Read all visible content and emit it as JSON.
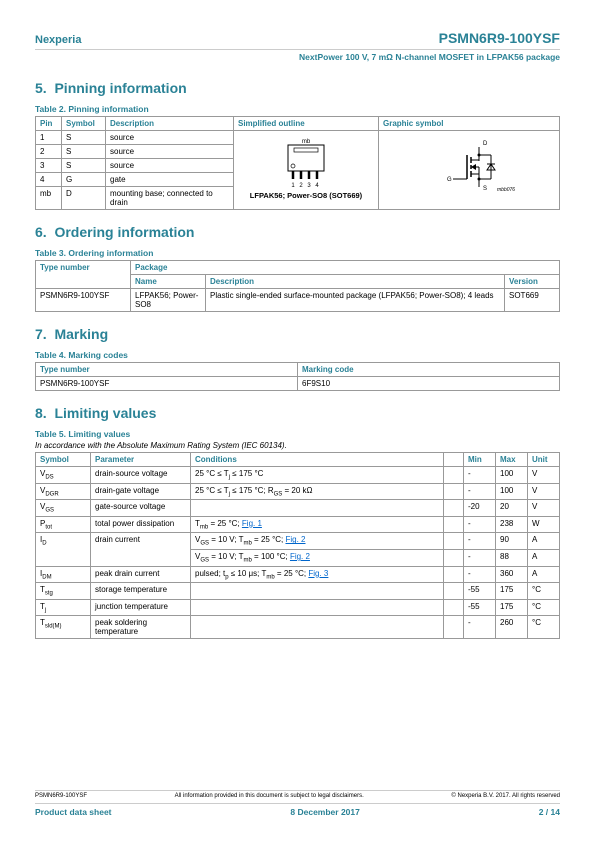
{
  "header": {
    "company": "Nexperia",
    "part": "PSMN6R9-100YSF",
    "subtitle": "NextPower 100 V, 7 mΩ N-channel MOSFET in LFPAK56 package"
  },
  "sections": {
    "s5": {
      "num": "5.",
      "title": "Pinning information"
    },
    "s6": {
      "num": "6.",
      "title": "Ordering information"
    },
    "s7": {
      "num": "7.",
      "title": "Marking"
    },
    "s8": {
      "num": "8.",
      "title": "Limiting values"
    }
  },
  "table2": {
    "title": "Table 2. Pinning information",
    "headers": {
      "pin": "Pin",
      "symbol": "Symbol",
      "desc": "Description",
      "outline": "Simplified outline",
      "graphic": "Graphic symbol"
    },
    "rows": [
      {
        "pin": "1",
        "symbol": "S",
        "desc": "source"
      },
      {
        "pin": "2",
        "symbol": "S",
        "desc": "source"
      },
      {
        "pin": "3",
        "symbol": "S",
        "desc": "source"
      },
      {
        "pin": "4",
        "symbol": "G",
        "desc": "gate"
      },
      {
        "pin": "mb",
        "symbol": "D",
        "desc": "mounting base; connected to drain"
      }
    ],
    "pkg_label": "LFPAK56; Power-SO8 (SOT669)",
    "mb_label": "mb",
    "pin_nums": {
      "p1": "1",
      "p2": "2",
      "p3": "3",
      "p4": "4"
    },
    "sym_labels": {
      "d": "D",
      "g": "G",
      "s": "S",
      "ref": "mbb076"
    }
  },
  "table3": {
    "title": "Table 3. Ordering information",
    "headers": {
      "type": "Type number",
      "pkg": "Package",
      "name": "Name",
      "desc": "Description",
      "ver": "Version"
    },
    "row": {
      "type": "PSMN6R9-100YSF",
      "name": "LFPAK56; Power-SO8",
      "desc": "Plastic single-ended surface-mounted package (LFPAK56; Power-SO8); 4 leads",
      "ver": "SOT669"
    }
  },
  "table4": {
    "title": "Table 4. Marking codes",
    "headers": {
      "type": "Type number",
      "code": "Marking code"
    },
    "row": {
      "type": "PSMN6R9-100YSF",
      "code": "6F9S10"
    }
  },
  "table5": {
    "title": "Table 5. Limiting values",
    "note": "In accordance with the Absolute Maximum Rating System (IEC 60134).",
    "headers": {
      "symbol": "Symbol",
      "param": "Parameter",
      "cond": "Conditions",
      "blank": "",
      "min": "Min",
      "max": "Max",
      "unit": "Unit"
    },
    "rows": [
      {
        "sym_html": "V<sub>DS</sub>",
        "param": "drain-source voltage",
        "cond_html": "25 °C ≤  T<sub>j</sub> ≤  175 °C",
        "min": "-",
        "max": "100",
        "unit": "V"
      },
      {
        "sym_html": "V<sub>DGR</sub>",
        "param": "drain-gate voltage",
        "cond_html": "25 °C ≤  T<sub>j</sub> ≤  175 °C; R<sub>GS</sub> = 20 kΩ",
        "min": "-",
        "max": "100",
        "unit": "V"
      },
      {
        "sym_html": "V<sub>GS</sub>",
        "param": "gate-source voltage",
        "cond_html": "",
        "min": "-20",
        "max": "20",
        "unit": "V"
      },
      {
        "sym_html": "P<sub>tot</sub>",
        "param": "total power dissipation",
        "cond_html": "T<sub>mb</sub> = 25 °C; <a class='link'>Fig. 1</a>",
        "min": "-",
        "max": "238",
        "unit": "W"
      },
      {
        "sym_html": "I<sub>D</sub>",
        "param": "drain current",
        "cond_html": "V<sub>GS</sub> = 10 V; T<sub>mb</sub> = 25 °C; <a class='link'>Fig. 2</a>",
        "min": "-",
        "max": "90",
        "unit": "A",
        "rowspan": 2
      },
      {
        "sub": true,
        "cond_html": "V<sub>GS</sub> = 10 V; T<sub>mb</sub> = 100 °C; <a class='link'>Fig. 2</a>",
        "min": "-",
        "max": "88",
        "unit": "A"
      },
      {
        "sym_html": "I<sub>DM</sub>",
        "param": "peak drain current",
        "cond_html": "pulsed; t<sub>p</sub> ≤  10 μs; T<sub>mb</sub> = 25 °C; <a class='link'>Fig. 3</a>",
        "min": "-",
        "max": "360",
        "unit": "A"
      },
      {
        "sym_html": "T<sub>stg</sub>",
        "param": "storage temperature",
        "cond_html": "",
        "min": "-55",
        "max": "175",
        "unit": "°C"
      },
      {
        "sym_html": "T<sub>j</sub>",
        "param": "junction temperature",
        "cond_html": "",
        "min": "-55",
        "max": "175",
        "unit": "°C"
      },
      {
        "sym_html": "T<sub>sld(M)</sub>",
        "param": "peak soldering temperature",
        "cond_html": "",
        "min": "-",
        "max": "260",
        "unit": "°C"
      }
    ]
  },
  "footer": {
    "part": "PSMN6R9-100YSF",
    "disclaimer": "All information provided in this document is subject to legal disclaimers.",
    "copyright": "© Nexperia B.V. 2017. All rights reserved",
    "doc_type": "Product data sheet",
    "date": "8 December 2017",
    "page": "2 / 14"
  },
  "colors": {
    "primary": "#2a8296",
    "border": "#999999",
    "link": "#0066cc"
  }
}
